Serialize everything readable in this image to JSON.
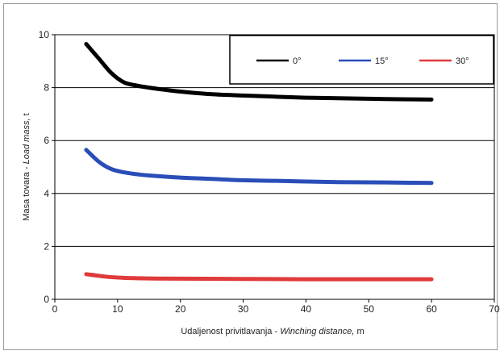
{
  "chart_data": {
    "type": "line",
    "title": "",
    "xlabel_plain": "Udaljenost privitlavanja - ",
    "xlabel_italic": "Winching distance,",
    "xlabel_unit": " m",
    "ylabel_plain": "Masa tovara - ",
    "ylabel_italic": "Load mass,",
    "ylabel_unit": " t",
    "xlim": [
      0,
      70
    ],
    "ylim": [
      0,
      10
    ],
    "xticks": [
      0,
      10,
      20,
      30,
      40,
      50,
      60,
      70
    ],
    "yticks": [
      0,
      2,
      4,
      6,
      8,
      10
    ],
    "grid": "horizontal",
    "legend": "top-right",
    "series": [
      {
        "name": "0°",
        "color": "#000000",
        "x": [
          5,
          7,
          9,
          11,
          13,
          15,
          20,
          25,
          30,
          35,
          40,
          45,
          50,
          55,
          60
        ],
        "y": [
          9.65,
          9.1,
          8.55,
          8.2,
          8.08,
          8.0,
          7.85,
          7.75,
          7.7,
          7.66,
          7.62,
          7.6,
          7.58,
          7.56,
          7.55
        ]
      },
      {
        "name": "15°",
        "color": "#2a4db8",
        "x": [
          5,
          7,
          9,
          11,
          13,
          15,
          20,
          25,
          30,
          35,
          40,
          45,
          50,
          55,
          60
        ],
        "y": [
          5.65,
          5.2,
          4.92,
          4.8,
          4.73,
          4.68,
          4.6,
          4.55,
          4.5,
          4.48,
          4.45,
          4.43,
          4.42,
          4.41,
          4.4
        ]
      },
      {
        "name": "30°",
        "color": "#e03a3a",
        "x": [
          5,
          8,
          11,
          15,
          20,
          30,
          40,
          50,
          60
        ],
        "y": [
          0.95,
          0.86,
          0.81,
          0.79,
          0.78,
          0.77,
          0.76,
          0.76,
          0.76
        ]
      }
    ]
  }
}
